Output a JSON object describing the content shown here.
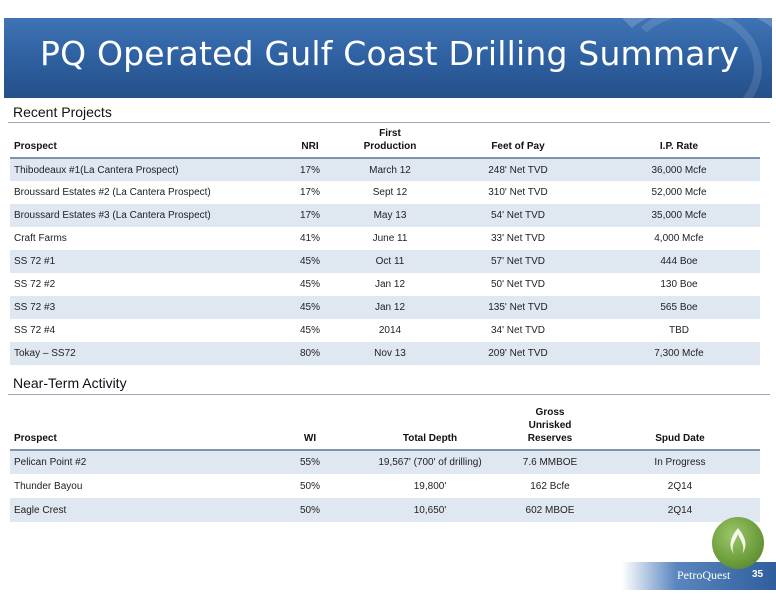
{
  "title": "PQ Operated Gulf Coast Drilling Summary",
  "recent": {
    "heading": "Recent  Projects",
    "columns": [
      "Prospect",
      "NRI",
      "First\nProduction",
      "Feet of Pay",
      "I.P. Rate"
    ],
    "rows": [
      [
        "Thibodeaux #1(La Cantera Prospect)",
        "17%",
        "March 12",
        "248' Net TVD",
        "36,000 Mcfe"
      ],
      [
        "Broussard Estates  #2 (La Cantera Prospect)",
        "17%",
        "Sept 12",
        "310' Net TVD",
        "52,000 Mcfe"
      ],
      [
        "Broussard Estates  #3 (La Cantera Prospect)",
        "17%",
        "May 13",
        "54' Net TVD",
        "35,000 Mcfe"
      ],
      [
        "Craft Farms",
        "41%",
        "June 11",
        "33' Net TVD",
        "4,000 Mcfe"
      ],
      [
        "SS 72 #1",
        "45%",
        "Oct 11",
        "57' Net TVD",
        "444 Boe"
      ],
      [
        "SS 72 #2",
        "45%",
        "Jan 12",
        "50' Net TVD",
        "130 Boe"
      ],
      [
        "SS 72 #3",
        "45%",
        "Jan 12",
        "135' Net TVD",
        "565 Boe"
      ],
      [
        "SS 72 #4",
        "45%",
        "2014",
        "34' Net TVD",
        "TBD"
      ],
      [
        "Tokay – SS72",
        "80%",
        "Nov 13",
        "209' Net TVD",
        "7,300 Mcfe"
      ]
    ]
  },
  "nearterm": {
    "heading": "Near-Term Activity",
    "columns": [
      "Prospect",
      "WI",
      "Total Depth",
      "Gross\nUnrisked\nReserves",
      "Spud Date"
    ],
    "rows": [
      [
        "Pelican Point #2",
        "55%",
        "19,567' (700' of drilling)",
        "7.6 MMBOE",
        "In Progress"
      ],
      [
        "Thunder Bayou",
        "50%",
        "19,800'",
        "162 Bcfe",
        "2Q14"
      ],
      [
        "Eagle Crest",
        "50%",
        "10,650'",
        "602 MBOE",
        "2Q14"
      ]
    ]
  },
  "footer": {
    "company": "PetroQuest",
    "page": "35"
  }
}
